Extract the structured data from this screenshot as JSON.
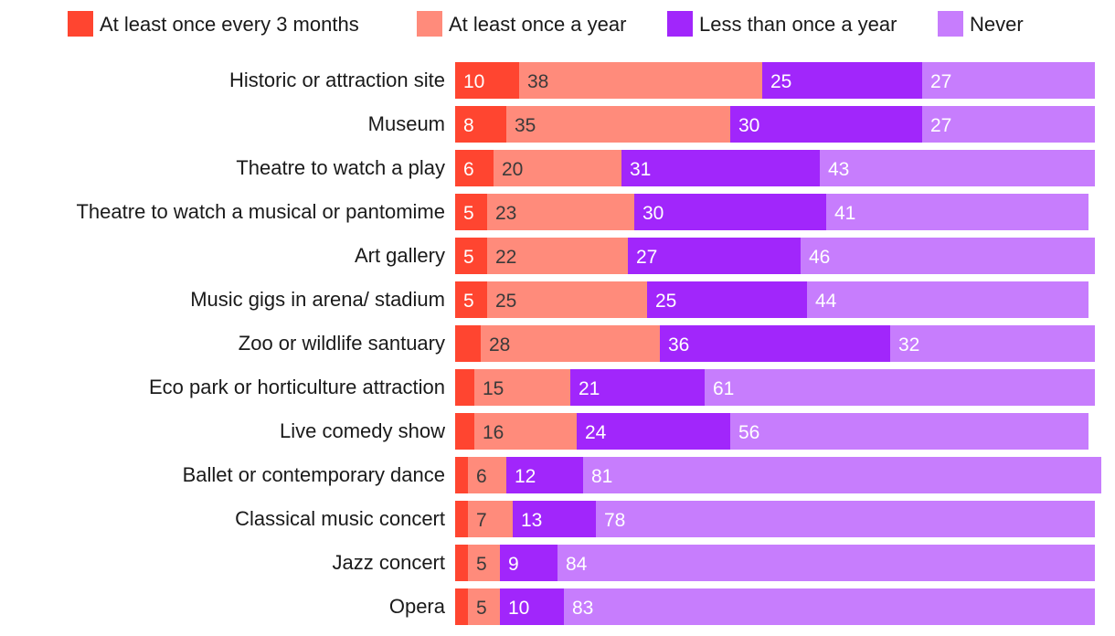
{
  "chart_data": {
    "type": "bar",
    "orientation": "horizontal",
    "stacked": true,
    "title": "",
    "xlabel": "",
    "ylabel": "",
    "xlim": [
      0,
      100
    ],
    "legend_position": "top",
    "categories": [
      "Historic or attraction site",
      "Museum",
      "Theatre to watch a play",
      "Theatre to watch a musical or pantomime",
      "Art gallery",
      "Music gigs in arena/ stadium",
      "Zoo or wildlife santuary",
      "Eco park or horticulture attraction",
      "Live comedy show",
      "Ballet or contemporary dance",
      "Classical music concert",
      "Jazz concert",
      "Opera"
    ],
    "series": [
      {
        "name": "At least once every 3 months",
        "color": "#ff4530",
        "label_color": "#ffffff",
        "values": [
          10,
          8,
          6,
          5,
          5,
          5,
          4,
          3,
          3,
          2,
          2,
          2,
          2
        ],
        "labels": [
          "10",
          "8",
          "6",
          "5",
          "5",
          "5",
          "",
          "",
          "",
          "",
          "",
          "",
          ""
        ]
      },
      {
        "name": "At least once a year",
        "color": "#ff8b7b",
        "label_color": "#3a3a3a",
        "values": [
          38,
          35,
          20,
          23,
          22,
          25,
          28,
          15,
          16,
          6,
          7,
          5,
          5
        ],
        "labels": [
          "38",
          "35",
          "20",
          "23",
          "22",
          "25",
          "28",
          "15",
          "16",
          "6",
          "7",
          "5",
          "5"
        ]
      },
      {
        "name": "Less than once a year",
        "color": "#a126fb",
        "label_color": "#ffffff",
        "values": [
          25,
          30,
          31,
          30,
          27,
          25,
          36,
          21,
          24,
          12,
          13,
          9,
          10
        ],
        "labels": [
          "25",
          "30",
          "31",
          "30",
          "27",
          "25",
          "36",
          "21",
          "24",
          "12",
          "13",
          "9",
          "10"
        ]
      },
      {
        "name": "Never",
        "color": "#c77dfd",
        "label_color": "#ffffff",
        "values": [
          27,
          27,
          43,
          41,
          46,
          44,
          32,
          61,
          56,
          81,
          78,
          84,
          83
        ],
        "labels": [
          "27",
          "27",
          "43",
          "41",
          "46",
          "44",
          "32",
          "61",
          "56",
          "81",
          "78",
          "84",
          "83"
        ]
      }
    ]
  }
}
